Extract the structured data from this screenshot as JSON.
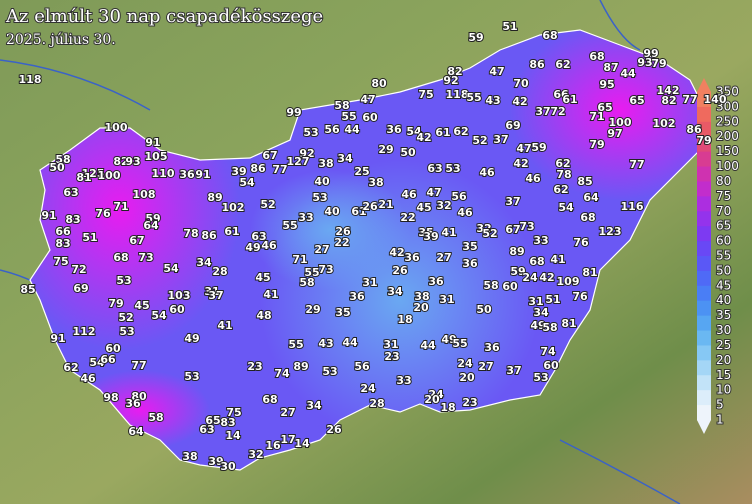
{
  "title": "Az elmúlt 30 nap csapadékösszege",
  "date": "2025. július 30.",
  "station_values": [
    118,
    59,
    51,
    68,
    100,
    91,
    58,
    50,
    82,
    92,
    47,
    70,
    86,
    62,
    68,
    87,
    44,
    99,
    93,
    79,
    80,
    47,
    75,
    118,
    55,
    42,
    43,
    66,
    61,
    95,
    65,
    65,
    142,
    77,
    82,
    140,
    99,
    58,
    55,
    60,
    36,
    54,
    42,
    61,
    62,
    52,
    37,
    69,
    37,
    72,
    71,
    100,
    97,
    102,
    86,
    79,
    53,
    56,
    44,
    29,
    50,
    59,
    47,
    42,
    62,
    79,
    77,
    125,
    100,
    82,
    93,
    105,
    110,
    36,
    91,
    39,
    86,
    77,
    67,
    92,
    127,
    38,
    34,
    40,
    25,
    38,
    63,
    53,
    46,
    46,
    78,
    85,
    54,
    89,
    102,
    52,
    53,
    81,
    63,
    108,
    71,
    91,
    83,
    76,
    59,
    64,
    33,
    40,
    61,
    26,
    21,
    22,
    47,
    56,
    46,
    45,
    32,
    46,
    37,
    62,
    64,
    54,
    68,
    116,
    66,
    83,
    51,
    67,
    78,
    86,
    61,
    55,
    26,
    22,
    35,
    39,
    41,
    32,
    52,
    67,
    73,
    33,
    63,
    49,
    46,
    71,
    27,
    123,
    76,
    75,
    72,
    68,
    73,
    54,
    34,
    28,
    42,
    36,
    27,
    35,
    36,
    89,
    68,
    41,
    59,
    24,
    109,
    81,
    55,
    76,
    85,
    69,
    53,
    45,
    26,
    73,
    58,
    31,
    36,
    58,
    60,
    42,
    79,
    45,
    103,
    31,
    37,
    41,
    36,
    34,
    38,
    31,
    31,
    51,
    52,
    53,
    54,
    60,
    48,
    29,
    35,
    18,
    20,
    50,
    34,
    49,
    58,
    81,
    112,
    91,
    41,
    49,
    55,
    43,
    44,
    31,
    44,
    49,
    55,
    36,
    74,
    60,
    54,
    66,
    62,
    46,
    77,
    23,
    74,
    89,
    53,
    56,
    23,
    24,
    27,
    37,
    60,
    53,
    53,
    33,
    20,
    24,
    24,
    98,
    80,
    36,
    68,
    28,
    20,
    18,
    23,
    58,
    75,
    65,
    83,
    63,
    27,
    34,
    64,
    14,
    26,
    17,
    14,
    16,
    32,
    38,
    39,
    30
  ],
  "legend": {
    "labels": [
      350,
      300,
      250,
      200,
      150,
      100,
      80,
      75,
      70,
      65,
      60,
      55,
      50,
      45,
      40,
      35,
      30,
      25,
      20,
      15,
      10,
      5,
      1
    ],
    "colors": [
      "#f08060",
      "#ef6a5e",
      "#e85a66",
      "#e04a78",
      "#d83c92",
      "#cf32b0",
      "#c22dcc",
      "#ac2ee0",
      "#9433ec",
      "#7d3af2",
      "#6948f5",
      "#5a58f6",
      "#4f6af6",
      "#4a7ef5",
      "#4c92f3",
      "#57a6f2",
      "#6ab8f2",
      "#86c8f4",
      "#a4d6f6",
      "#c2e3f8",
      "#dcedfa",
      "#eef4fb"
    ]
  }
}
